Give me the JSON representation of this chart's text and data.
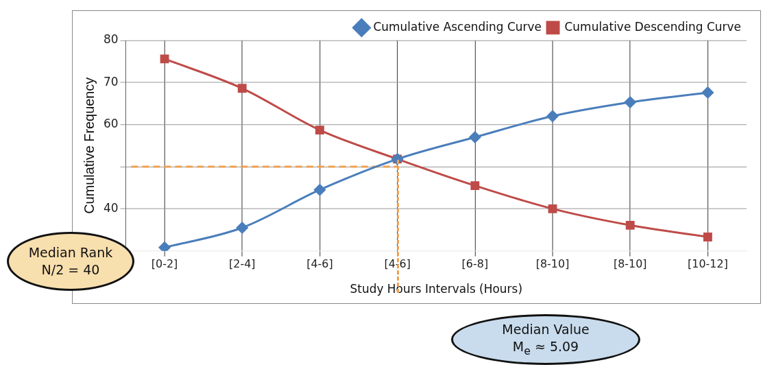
{
  "chart_data": {
    "type": "line",
    "xlabel": "Study Hours Intervals (Hours)",
    "ylabel": "Cumulative Frequency",
    "categories": [
      "[0-2]",
      "[2-4]",
      "[4-6]",
      "[4-6]",
      "[6-8]",
      "[8-10]",
      "[8-10]",
      "[10-12]"
    ],
    "series": [
      {
        "name": "Cumulative Ascending Curve",
        "color": "#4a7ebb",
        "marker": "diamond",
        "values": [
          30.8,
          35.5,
          44.5,
          51.8,
          57,
          62,
          65.3,
          67.6
        ]
      },
      {
        "name": "Cumulative Descending Curve",
        "color": "#be4b48",
        "marker": "square",
        "values": [
          75.6,
          68.6,
          58.7,
          51.8,
          45.5,
          40,
          36.1,
          33.3
        ]
      }
    ],
    "ylim": [
      30,
      80
    ],
    "yticks": [
      80,
      70,
      60,
      {
        "value": 50,
        "label": null
      },
      40
    ],
    "grid": true,
    "legend": "top right",
    "line_style": "solid",
    "ref_lines": [
      {
        "axis": "y",
        "value": 50,
        "color": "#f0a050",
        "line_style": "dashed"
      }
    ],
    "annotations": [
      "Median Rank\nN/2 = 40",
      "Median Value\nM$_{e}$ ≈ 5.09"
    ]
  }
}
